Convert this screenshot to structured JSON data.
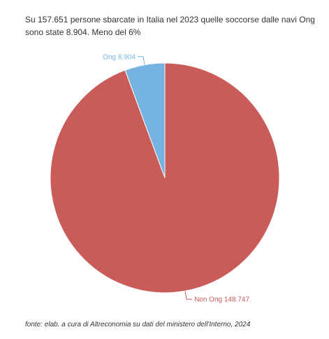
{
  "header": {
    "title": "Su 157.651 persone sbarcate in Italia nel 2023 quelle soccorse dalle navi Ong sono state 8.904. Meno del 6%"
  },
  "chart_data": {
    "type": "pie",
    "start_angle_deg": 0,
    "direction": "counterclockwise",
    "slices": [
      {
        "name": "Ong",
        "value": 8904,
        "label": "Ong 8.904",
        "color": "#75b4e0"
      },
      {
        "name": "Non Ong",
        "value": 148747,
        "label": "Non Ong 148.747",
        "color": "#c95b58"
      }
    ],
    "total": 157651,
    "legend": "none"
  },
  "footer": {
    "source": "fonte: elab. a cura di Altreconomia su dati del ministero dell'Interno, 2024"
  }
}
